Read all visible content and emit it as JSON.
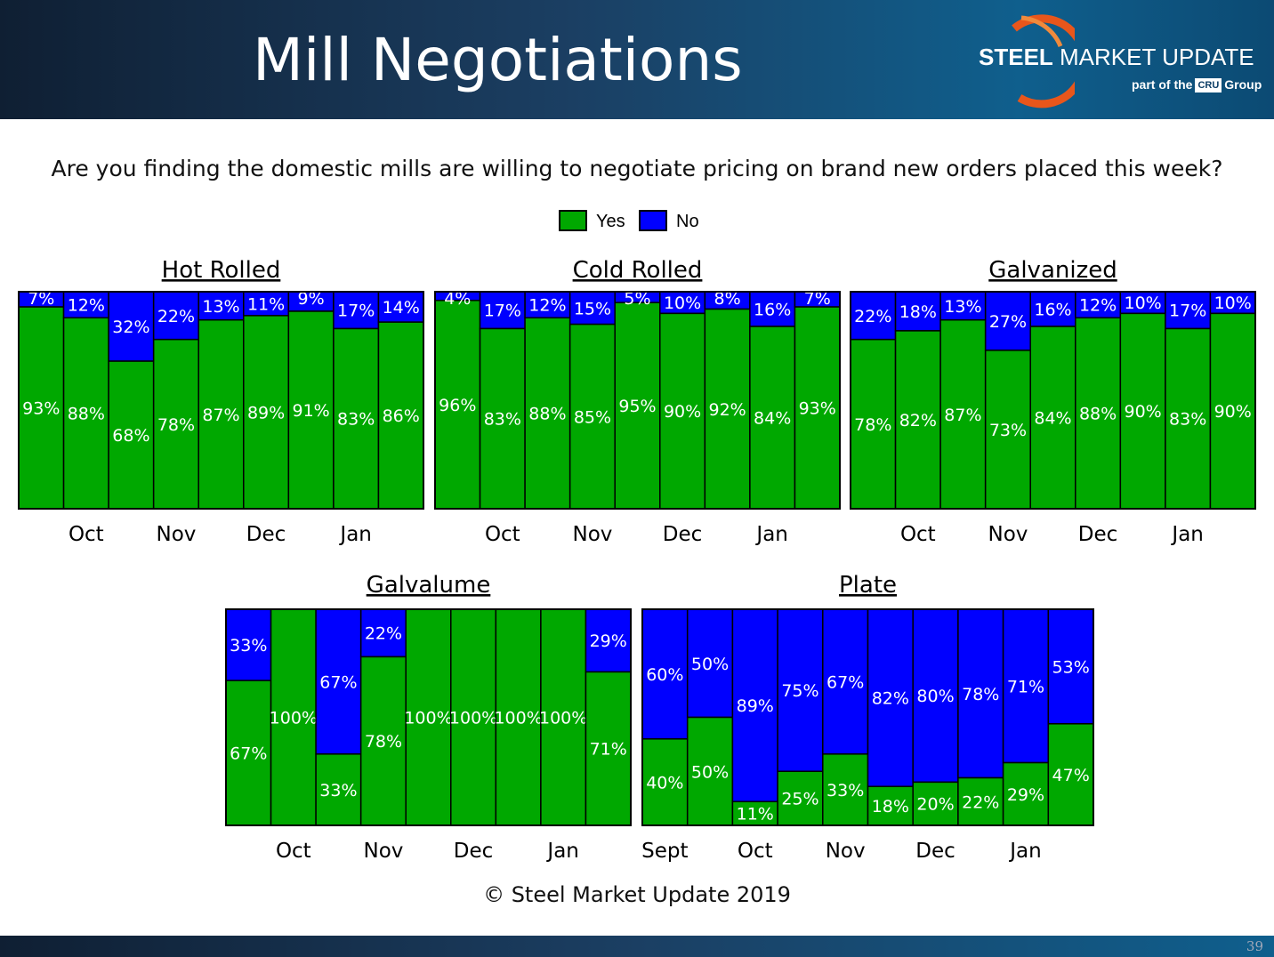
{
  "header": {
    "title": "Mill Negotiations",
    "logo_brand_bold": "STEEL",
    "logo_brand_rest": " MARKET UPDATE",
    "logo_sub_prefix": "part of the",
    "logo_sub_badge": "CRU",
    "logo_sub_suffix": "Group"
  },
  "question": "Are you finding the domestic mills are willing to negotiate pricing on brand new orders placed this week?",
  "legend": {
    "yes": "Yes",
    "no": "No"
  },
  "colors": {
    "yes": "#00a800",
    "no": "#0000ff",
    "border": "#000000",
    "header_bg": "#1b3f63",
    "logo_orange": "#e8561b"
  },
  "chart_data": [
    {
      "type": "bar",
      "stacked": true,
      "percent": true,
      "title": "Hot Rolled",
      "x_labels": [
        "Oct",
        "Nov",
        "Dec",
        "Jan"
      ],
      "series": [
        {
          "name": "Yes",
          "values": [
            93,
            88,
            68,
            78,
            87,
            89,
            91,
            83,
            86
          ]
        },
        {
          "name": "No",
          "values": [
            7,
            12,
            32,
            22,
            13,
            11,
            9,
            17,
            14
          ]
        }
      ],
      "ylim": [
        0,
        100
      ]
    },
    {
      "type": "bar",
      "stacked": true,
      "percent": true,
      "title": "Cold Rolled",
      "x_labels": [
        "Oct",
        "Nov",
        "Dec",
        "Jan"
      ],
      "series": [
        {
          "name": "Yes",
          "values": [
            96,
            83,
            88,
            85,
            95,
            90,
            92,
            84,
            93
          ]
        },
        {
          "name": "No",
          "values": [
            4,
            17,
            12,
            15,
            5,
            10,
            8,
            16,
            7
          ]
        }
      ],
      "ylim": [
        0,
        100
      ]
    },
    {
      "type": "bar",
      "stacked": true,
      "percent": true,
      "title": "Galvanized",
      "x_labels": [
        "Oct",
        "Nov",
        "Dec",
        "Jan"
      ],
      "series": [
        {
          "name": "Yes",
          "values": [
            78,
            82,
            87,
            73,
            84,
            88,
            90,
            83,
            90
          ]
        },
        {
          "name": "No",
          "values": [
            22,
            18,
            13,
            27,
            16,
            12,
            10,
            17,
            10
          ]
        }
      ],
      "ylim": [
        0,
        100
      ]
    },
    {
      "type": "bar",
      "stacked": true,
      "percent": true,
      "title": "Galvalume",
      "x_labels": [
        "Oct",
        "Nov",
        "Dec",
        "Jan"
      ],
      "series": [
        {
          "name": "Yes",
          "values": [
            67,
            100,
            33,
            78,
            100,
            100,
            100,
            100,
            71
          ]
        },
        {
          "name": "No",
          "values": [
            33,
            0,
            67,
            22,
            0,
            0,
            0,
            0,
            29
          ]
        }
      ],
      "ylim": [
        0,
        100
      ]
    },
    {
      "type": "bar",
      "stacked": true,
      "percent": true,
      "title": "Plate",
      "x_labels": [
        "Sept",
        "Oct",
        "Nov",
        "Dec",
        "Jan"
      ],
      "series": [
        {
          "name": "Yes",
          "values": [
            40,
            50,
            11,
            25,
            33,
            18,
            20,
            22,
            29,
            47
          ]
        },
        {
          "name": "No",
          "values": [
            60,
            50,
            89,
            75,
            67,
            82,
            80,
            78,
            71,
            53
          ]
        }
      ],
      "ylim": [
        0,
        100
      ]
    }
  ],
  "copyright": "© Steel Market Update 2019",
  "page_number": "39"
}
